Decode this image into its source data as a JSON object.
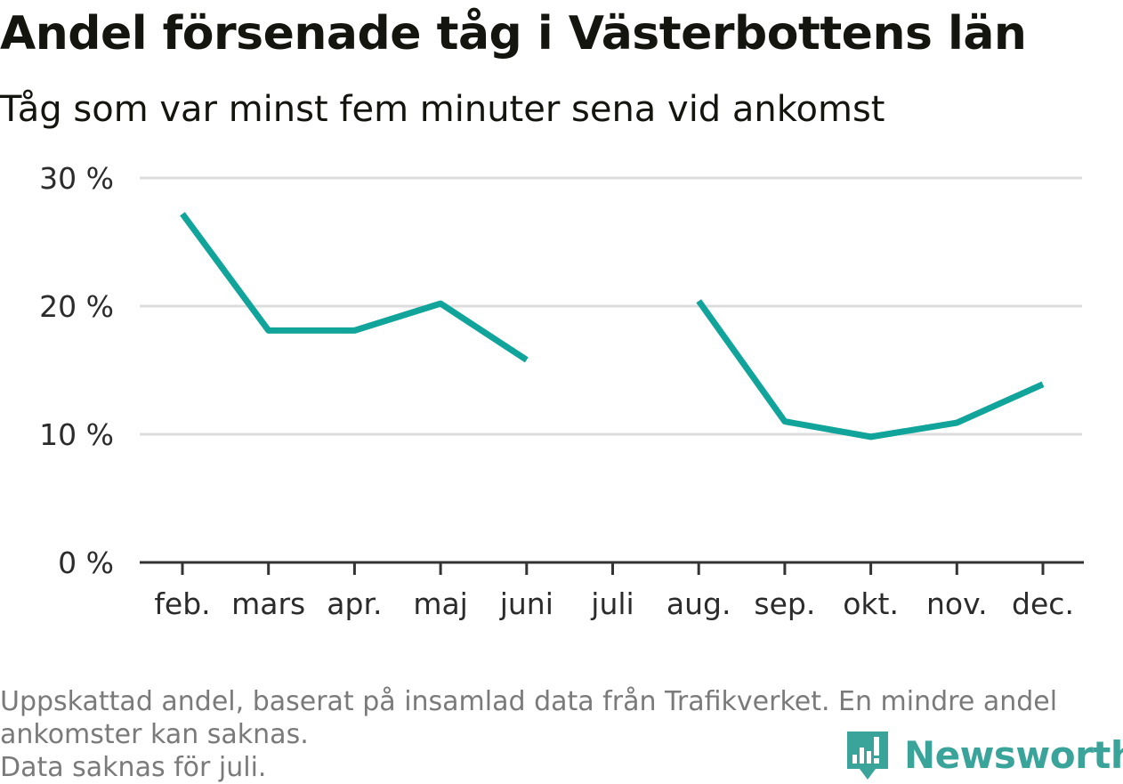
{
  "title": "Andel försenade tåg i Västerbottens län",
  "subtitle": "Tåg som var minst fem minuter sena vid ankomst",
  "chart_data": {
    "type": "line",
    "categories": [
      "feb.",
      "mars",
      "apr.",
      "maj",
      "juni",
      "juli",
      "aug.",
      "sep.",
      "okt.",
      "nov.",
      "dec."
    ],
    "series": [
      {
        "name": "",
        "values": [
          27.2,
          18.1,
          18.1,
          20.2,
          15.8,
          null,
          20.4,
          11.0,
          9.8,
          10.9,
          13.9
        ]
      }
    ],
    "yticks": [
      "0 %",
      "10 %",
      "20 %",
      "30 %"
    ],
    "ytick_values": [
      0,
      10,
      20,
      30
    ],
    "ylim": [
      0,
      30
    ],
    "grid": true,
    "line_color": "#10a49a",
    "grid_color": "#dddddd",
    "axis_color": "#333333"
  },
  "footer": {
    "note_line1": "Uppskattad andel, baserat på insamlad data från Trafikverket. En mindre andel",
    "note_line2": "ankomster kan saknas.",
    "note_line3": "Data saknas för juli."
  },
  "logo": {
    "text": "Newsworthy",
    "icon": "newsworthy-chart-icon",
    "color": "#3aa39a"
  }
}
